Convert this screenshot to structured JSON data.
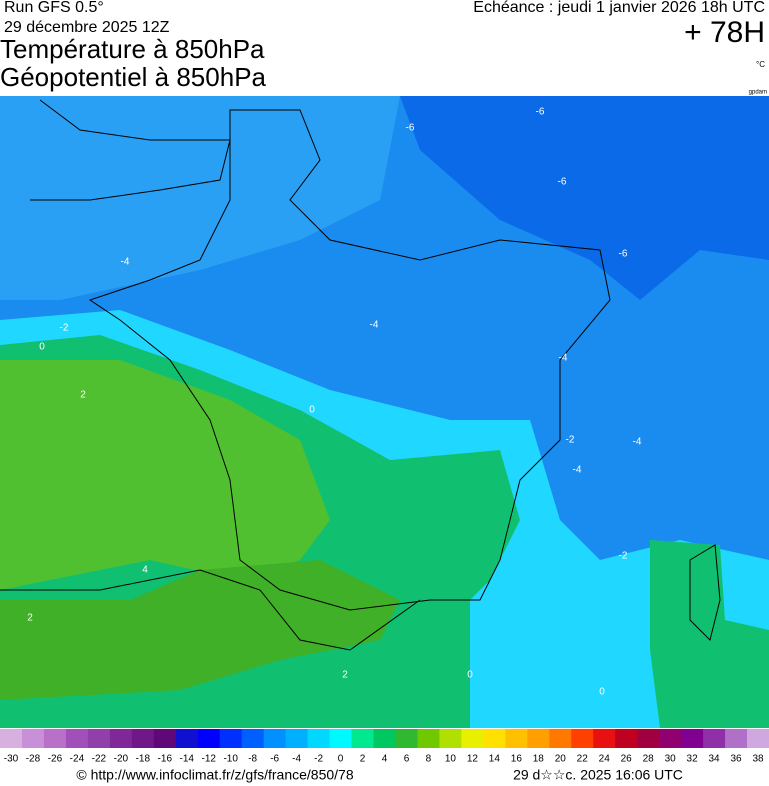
{
  "header": {
    "run": "Run GFS 0.5°",
    "date": "29 décembre 2025 12Z",
    "title1": "Température à 850hPa",
    "title2": "Géopotentiel à 850hPa",
    "echeance": "Echéance : jeudi 1 janvier 2026 18h UTC",
    "lead": "+ 78H",
    "unit": "°C",
    "credit": "gpdam"
  },
  "contours": {
    "labels": [
      "-6",
      "-6",
      "-6",
      "-6",
      "-4",
      "-4",
      "-4",
      "-4",
      "-4",
      "-2",
      "-2",
      "-2",
      "0",
      "0",
      "0",
      "0",
      "2",
      "2",
      "2",
      "4"
    ]
  },
  "colorbar": {
    "values": [
      -30,
      -28,
      -26,
      -24,
      -22,
      -20,
      -18,
      -16,
      -14,
      -12,
      -10,
      -8,
      -6,
      -4,
      -2,
      0,
      2,
      4,
      6,
      8,
      10,
      12,
      14,
      16,
      18,
      20,
      22,
      24,
      26,
      28,
      30,
      32,
      34,
      36,
      38
    ],
    "colors": [
      "#d8b0e0",
      "#c890d8",
      "#b870c8",
      "#a050b8",
      "#9040a8",
      "#802898",
      "#701888",
      "#600878",
      "#1010d0",
      "#0000ff",
      "#0030ff",
      "#0060ff",
      "#0090ff",
      "#00b0ff",
      "#00d8ff",
      "#00f8ff",
      "#00e890",
      "#00c860",
      "#30b830",
      "#70c800",
      "#b0e000",
      "#e8f000",
      "#ffe000",
      "#ffc000",
      "#ffa000",
      "#ff7800",
      "#ff4000",
      "#e81010",
      "#c00020",
      "#a00040",
      "#900070",
      "#800090",
      "#9030a8",
      "#b070c8",
      "#d0a8e0"
    ]
  },
  "footer": {
    "url": "© http://www.infoclimat.fr/z/gfs/france/850/78",
    "timestamp": "29 d☆☆c. 2025 16:06 UTC"
  }
}
